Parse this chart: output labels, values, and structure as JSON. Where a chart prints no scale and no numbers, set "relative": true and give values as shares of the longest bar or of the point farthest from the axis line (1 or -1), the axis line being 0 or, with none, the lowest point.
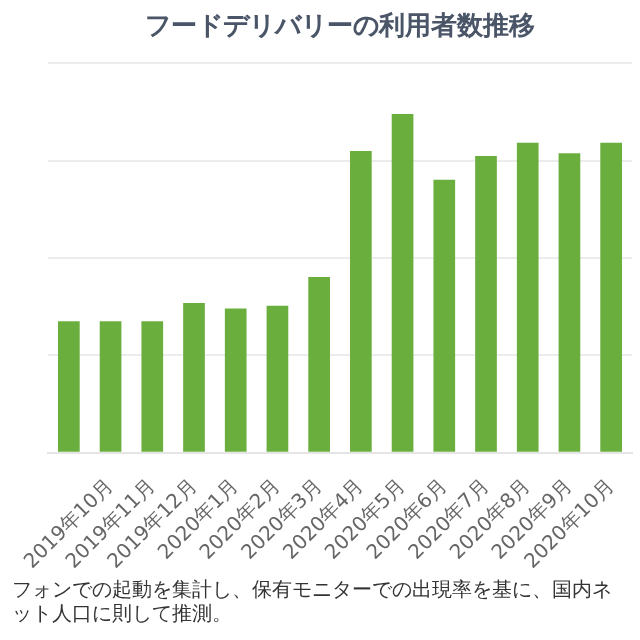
{
  "chart_data": {
    "type": "bar",
    "title": "フードデリバリーの利用者数推移",
    "relative": true,
    "color": "#6aaf3d",
    "grid": "y",
    "categories": [
      null,
      "2019年10月",
      "2019年11月",
      "2019年12月",
      "2020年1月",
      "2020年2月",
      "2020年3月",
      "2020年4月",
      "2020年5月",
      "2020年6月",
      "2020年7月",
      "2020年8月",
      "2020年9月",
      "2020年10月"
    ],
    "values": [
      0.388,
      0.388,
      0.388,
      0.442,
      0.426,
      0.434,
      0.519,
      0.891,
      1,
      0.806,
      0.876,
      0.915,
      0.884,
      0.915
    ],
    "annotations": [
      "フォンでの起動を集計し、保有モニターでの出現率を基に、国内ネット人口に則して推測。"
    ]
  }
}
